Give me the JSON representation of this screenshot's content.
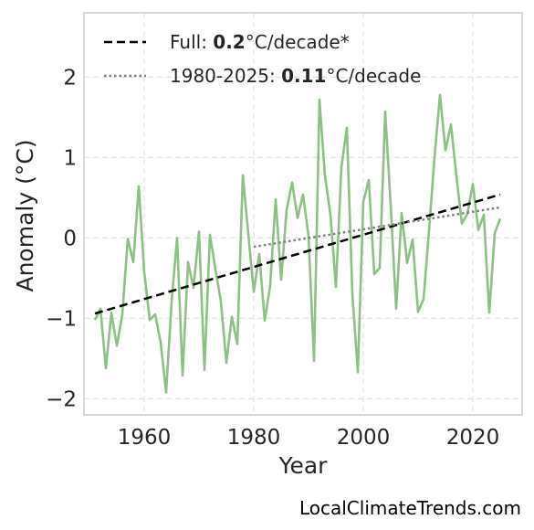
{
  "chart_data": {
    "type": "line",
    "xlabel": "Year",
    "ylabel": "Anomaly (°C)",
    "xlim": [
      1949,
      2029
    ],
    "ylim": [
      -2.2,
      2.8
    ],
    "xticks": [
      1960,
      1980,
      2000,
      2020
    ],
    "yticks": [
      -2,
      -1,
      0,
      1,
      2
    ],
    "ytick_labels": [
      "−2",
      "−1",
      "0",
      "1",
      "2"
    ],
    "grid": true,
    "legend_position": "top-left",
    "x": [
      1951,
      1952,
      1953,
      1954,
      1955,
      1956,
      1957,
      1958,
      1959,
      1960,
      1961,
      1962,
      1963,
      1964,
      1965,
      1966,
      1967,
      1968,
      1969,
      1970,
      1971,
      1972,
      1973,
      1974,
      1975,
      1976,
      1977,
      1978,
      1979,
      1980,
      1981,
      1982,
      1983,
      1984,
      1985,
      1986,
      1987,
      1988,
      1989,
      1990,
      1991,
      1992,
      1993,
      1994,
      1995,
      1996,
      1997,
      1998,
      1999,
      2000,
      2001,
      2002,
      2003,
      2004,
      2005,
      2006,
      2007,
      2008,
      2009,
      2010,
      2011,
      2012,
      2013,
      2014,
      2015,
      2016,
      2017,
      2018,
      2019,
      2020,
      2021,
      2022,
      2023,
      2024,
      2025
    ],
    "series": [
      {
        "color": "#8dbf86",
        "values": [
          -1.02,
          -0.88,
          -1.62,
          -0.93,
          -1.34,
          -0.95,
          -0.01,
          -0.3,
          0.64,
          -0.42,
          -1.02,
          -0.95,
          -1.3,
          -1.92,
          -0.79,
          0.0,
          -1.71,
          -0.3,
          -0.62,
          0.08,
          -1.64,
          0.04,
          -0.39,
          -0.79,
          -1.55,
          -0.98,
          -1.32,
          0.78,
          0.05,
          -0.67,
          -0.2,
          -1.03,
          -0.59,
          0.48,
          -0.52,
          0.35,
          0.69,
          0.25,
          0.54,
          0.02,
          -1.53,
          1.72,
          0.77,
          0.29,
          -0.61,
          0.88,
          1.37,
          -0.69,
          -1.67,
          0.45,
          0.72,
          -0.45,
          -0.37,
          1.57,
          0.41,
          -0.88,
          0.31,
          -0.31,
          -0.02,
          -0.92,
          -0.76,
          0.09,
          1.0,
          1.78,
          1.09,
          1.41,
          0.77,
          0.18,
          0.3,
          0.67,
          0.1,
          0.29,
          -0.93,
          0.06,
          0.24
        ]
      }
    ],
    "trends": [
      {
        "name": "Full",
        "rate": "0.2",
        "suffix": "°C/decade*",
        "style": "dashed",
        "color": "#000000",
        "x0": 1951,
        "y0": -0.94,
        "x1": 2025,
        "y1": 0.54
      },
      {
        "name": "1980-2025",
        "rate": "0.11",
        "suffix": "°C/decade",
        "style": "dotted",
        "color": "#808080",
        "x0": 1980,
        "y0": -0.11,
        "x1": 2025,
        "y1": 0.38
      }
    ]
  },
  "legend": {
    "full_prefix": "Full: ",
    "full_value": "0.2",
    "full_suffix": "°C/decade*",
    "recent_prefix": "1980-2025: ",
    "recent_value": "0.11",
    "recent_suffix": "°C/decade"
  },
  "credit": "LocalClimateTrends.com"
}
